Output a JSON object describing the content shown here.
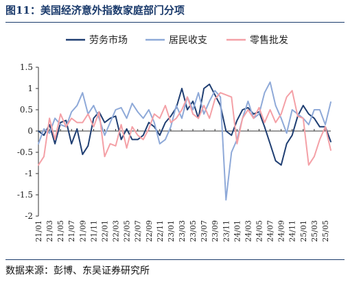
{
  "figure": {
    "title": "图11：美国经济意外指数家庭部门分项",
    "source": "数据来源：彭博、东吴证券研究所"
  },
  "chart_data": {
    "type": "line",
    "title": "",
    "xlabel": "",
    "ylabel": "",
    "ylim": [
      -2,
      1.5
    ],
    "yticks": [
      "1.5",
      "1",
      "0.5",
      "0",
      "-0.5",
      "-1",
      "-1.5",
      "-2"
    ],
    "xticks": [
      "21/01",
      "21/03",
      "21/05",
      "21/07",
      "21/09",
      "21/11",
      "22/01",
      "22/03",
      "22/05",
      "22/07",
      "22/09",
      "22/11",
      "23/01",
      "23/03",
      "23/05",
      "23/07",
      "23/09",
      "23/11",
      "24/01",
      "24/03",
      "24/05",
      "24/07",
      "24/09",
      "24/11",
      "25/01",
      "25/03",
      "25/05"
    ],
    "legend_position": "top",
    "grid": false,
    "series": [
      {
        "name": "劳务市场",
        "color": "#1f3e72",
        "x": [
          "21/01",
          "21/02",
          "21/03",
          "21/04",
          "21/05",
          "21/06",
          "21/07",
          "21/08",
          "21/09",
          "21/10",
          "21/11",
          "21/12",
          "22/01",
          "22/02",
          "22/03",
          "22/04",
          "22/05",
          "22/06",
          "22/07",
          "22/08",
          "22/09",
          "22/10",
          "22/11",
          "22/12",
          "23/01",
          "23/02",
          "23/03",
          "23/04",
          "23/05",
          "23/06",
          "23/07",
          "23/08",
          "23/09",
          "23/10",
          "23/11",
          "23/12",
          "24/01",
          "24/02",
          "24/03",
          "24/04",
          "24/05",
          "24/06",
          "24/07",
          "24/08",
          "24/09",
          "24/10",
          "24/11",
          "24/12",
          "25/01",
          "25/02",
          "25/03",
          "25/04",
          "25/05",
          "25/06"
        ],
        "values": [
          0.0,
          -0.1,
          0.15,
          -0.3,
          0.2,
          0.25,
          -0.3,
          0.05,
          -0.55,
          -0.35,
          0.3,
          0.45,
          0.2,
          0.3,
          0.35,
          -0.2,
          0.05,
          -0.2,
          -0.2,
          -0.1,
          0.2,
          0.1,
          -0.1,
          0.2,
          0.35,
          0.55,
          1.0,
          0.5,
          0.7,
          0.3,
          1.0,
          1.1,
          0.85,
          0.6,
          0.0,
          -0.1,
          0.25,
          0.5,
          0.55,
          0.4,
          0.45,
          0.1,
          -0.3,
          -0.7,
          -0.8,
          -0.3,
          -0.1,
          0.35,
          0.6,
          0.4,
          0.3,
          0.1,
          0.1,
          -0.25
        ]
      },
      {
        "name": "居民收支",
        "color": "#8ea9d8",
        "x": [
          "21/01",
          "21/02",
          "21/03",
          "21/04",
          "21/05",
          "21/06",
          "21/07",
          "21/08",
          "21/09",
          "21/10",
          "21/11",
          "21/12",
          "22/01",
          "22/02",
          "22/03",
          "22/04",
          "22/05",
          "22/06",
          "22/07",
          "22/08",
          "22/09",
          "22/10",
          "22/11",
          "22/12",
          "23/01",
          "23/02",
          "23/03",
          "23/04",
          "23/05",
          "23/06",
          "23/07",
          "23/08",
          "23/09",
          "23/10",
          "23/11",
          "23/12",
          "24/01",
          "24/02",
          "24/03",
          "24/04",
          "24/05",
          "24/06",
          "24/07",
          "24/08",
          "24/09",
          "24/10",
          "24/11",
          "24/12",
          "25/01",
          "25/02",
          "25/03",
          "25/04",
          "25/05",
          "25/06"
        ],
        "values": [
          -0.3,
          0.05,
          -0.05,
          0.3,
          0.15,
          0.1,
          0.45,
          0.6,
          0.9,
          0.4,
          0.6,
          0.3,
          -0.1,
          0.2,
          0.5,
          0.55,
          0.3,
          0.65,
          0.45,
          0.3,
          0.5,
          0.2,
          -0.3,
          -0.2,
          0.1,
          0.6,
          0.3,
          0.8,
          0.5,
          0.9,
          0.4,
          0.7,
          0.95,
          0.8,
          -1.62,
          -0.5,
          -0.2,
          0.3,
          0.7,
          0.3,
          0.4,
          0.9,
          1.15,
          0.6,
          0.3,
          -0.05,
          0.5,
          0.4,
          0.3,
          0.15,
          0.5,
          0.5,
          0.15,
          0.68
        ]
      },
      {
        "name": "零售批发",
        "color": "#f4a0a6",
        "x": [
          "21/01",
          "21/02",
          "21/03",
          "21/04",
          "21/05",
          "21/06",
          "21/07",
          "21/08",
          "21/09",
          "21/10",
          "21/11",
          "21/12",
          "22/01",
          "22/02",
          "22/03",
          "22/04",
          "22/05",
          "22/06",
          "22/07",
          "22/08",
          "22/09",
          "22/10",
          "22/11",
          "22/12",
          "23/01",
          "23/02",
          "23/03",
          "23/04",
          "23/05",
          "23/06",
          "23/07",
          "23/08",
          "23/09",
          "23/10",
          "23/11",
          "23/12",
          "24/01",
          "24/02",
          "24/03",
          "24/04",
          "24/05",
          "24/06",
          "24/07",
          "24/08",
          "24/09",
          "24/10",
          "24/11",
          "24/12",
          "25/01",
          "25/02",
          "25/03",
          "25/04",
          "25/05",
          "25/06"
        ],
        "values": [
          -0.8,
          -0.6,
          0.3,
          -0.2,
          0.4,
          0.1,
          0.3,
          0.2,
          0.2,
          0.4,
          0.1,
          0.45,
          -0.6,
          -0.3,
          -0.35,
          0.15,
          -0.4,
          0.1,
          -0.1,
          -0.2,
          0.05,
          0.4,
          0.3,
          0.6,
          0.2,
          0.3,
          0.5,
          0.8,
          0.4,
          0.3,
          0.6,
          0.3,
          0.75,
          0.9,
          0.85,
          0.8,
          -0.3,
          0.3,
          0.5,
          0.3,
          0.55,
          0.2,
          0.5,
          0.2,
          0.4,
          0.8,
          0.95,
          0.35,
          0.3,
          -0.8,
          -0.6,
          -0.2,
          0.1,
          -0.45
        ]
      }
    ]
  }
}
